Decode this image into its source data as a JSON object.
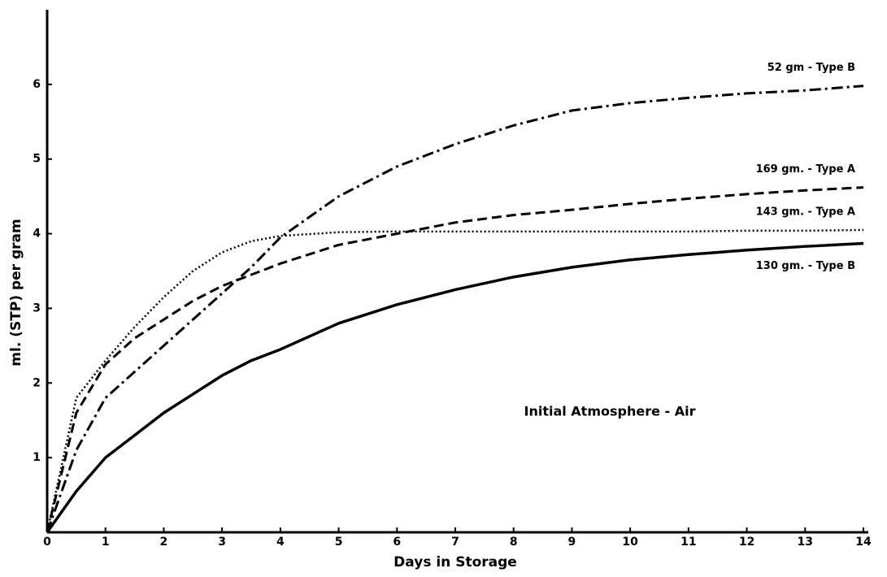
{
  "chart_data": {
    "type": "line",
    "xlabel": "Days in Storage",
    "ylabel": "ml. (STP) per gram",
    "annotation": "Initial Atmosphere - Air",
    "x": [
      0,
      0.5,
      1,
      1.5,
      2,
      2.5,
      3,
      3.5,
      4,
      5,
      6,
      7,
      8,
      9,
      10,
      11,
      12,
      13,
      14
    ],
    "series": [
      {
        "name": "52 gm - Type B",
        "color": "#000000",
        "style": "dashdot",
        "values": [
          0,
          1.1,
          1.8,
          2.15,
          2.5,
          2.85,
          3.2,
          3.55,
          3.95,
          4.5,
          4.9,
          5.2,
          5.45,
          5.65,
          5.75,
          5.82,
          5.88,
          5.92,
          5.98
        ]
      },
      {
        "name": "169 gm. - Type A",
        "color": "#000000",
        "style": "dashed",
        "values": [
          0,
          1.6,
          2.25,
          2.6,
          2.85,
          3.1,
          3.3,
          3.45,
          3.6,
          3.85,
          4.0,
          4.15,
          4.25,
          4.32,
          4.4,
          4.47,
          4.53,
          4.58,
          4.62
        ]
      },
      {
        "name": "143 gm. - Type A",
        "color": "#000000",
        "style": "dotted",
        "values": [
          0,
          1.8,
          2.3,
          2.75,
          3.15,
          3.5,
          3.75,
          3.9,
          3.97,
          4.02,
          4.03,
          4.03,
          4.03,
          4.03,
          4.03,
          4.03,
          4.04,
          4.04,
          4.05
        ]
      },
      {
        "name": "130 gm. - Type B",
        "color": "#000000",
        "style": "solid",
        "values": [
          0,
          0.55,
          1.0,
          1.3,
          1.6,
          1.85,
          2.1,
          2.3,
          2.45,
          2.8,
          3.05,
          3.25,
          3.42,
          3.55,
          3.65,
          3.72,
          3.78,
          3.83,
          3.87
        ]
      }
    ],
    "xlim": [
      0,
      14
    ],
    "ylim": [
      0,
      7
    ],
    "xticks": [
      0,
      1,
      2,
      3,
      4,
      5,
      6,
      7,
      8,
      9,
      10,
      11,
      12,
      13,
      14
    ],
    "yticks": [
      1,
      2,
      3,
      4,
      5,
      6
    ],
    "grid": false
  }
}
